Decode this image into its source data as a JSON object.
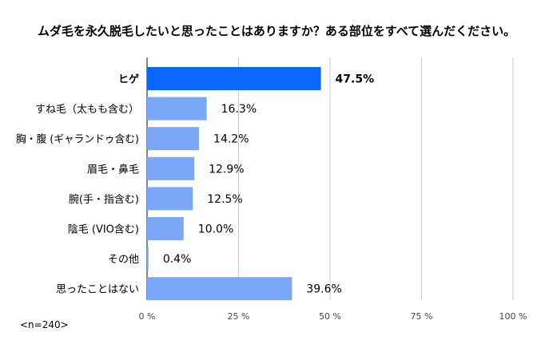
{
  "chart_data": {
    "type": "bar",
    "orientation": "horizontal",
    "title": "ムダ毛を永久脱毛したいと思ったことはありますか？ある部位をすべて選んだください。",
    "categories": [
      "ヒゲ",
      "すね毛（太もも含む）",
      "胸・腹 (ギャランドゥ含む)",
      "眉毛・鼻毛",
      "腕(手・指含む)",
      "陰毛 (VIO含む)",
      "その他",
      "思ったことはない"
    ],
    "values": [
      47.5,
      16.3,
      14.2,
      12.9,
      12.5,
      10.0,
      0.4,
      39.6
    ],
    "value_labels": [
      "47.5%",
      "16.3%",
      "14.2%",
      "12.9%",
      "12.5%",
      "10.0%",
      "0.4%",
      "39.6%"
    ],
    "highlight_index": 0,
    "xlim": [
      0,
      100
    ],
    "xticks": [
      0,
      25,
      50,
      75,
      100
    ],
    "xtick_labels": [
      "0 %",
      "25 %",
      "50 %",
      "75 %",
      "100 %"
    ],
    "grid": true,
    "colors": {
      "bar": "#7ba7f9",
      "highlight": "#0a66ff",
      "grid": "#cccccc",
      "axis": "#333333"
    },
    "note": "<n=240>"
  }
}
